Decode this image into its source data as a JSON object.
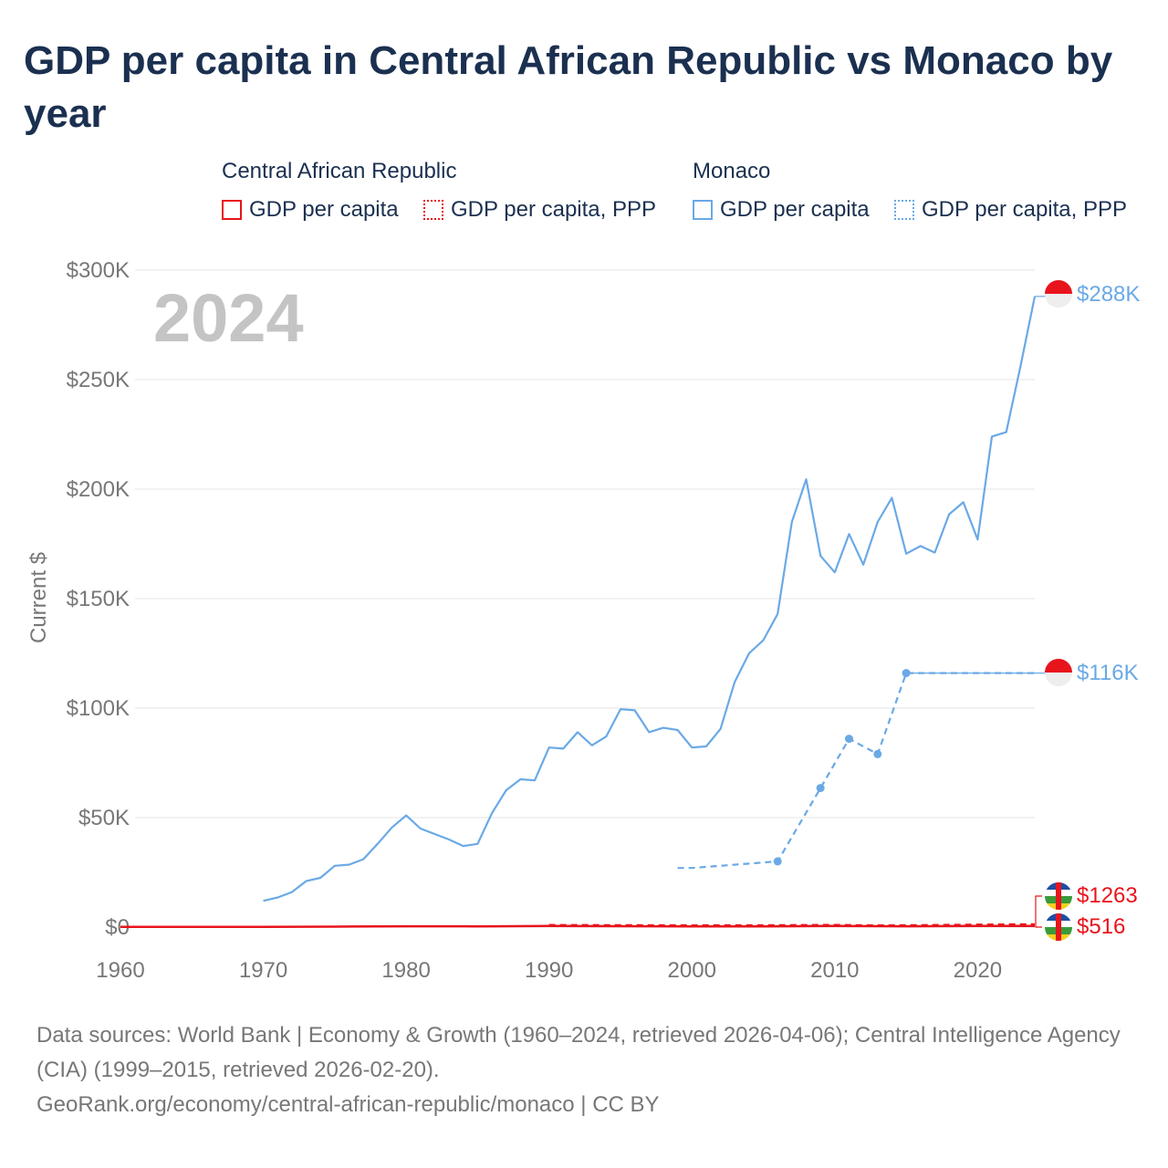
{
  "title": "GDP per capita in Central African Republic vs Monaco by year",
  "legend": {
    "groups": [
      {
        "name": "Central African Republic",
        "items": [
          "GDP per capita",
          "GDP per capita, PPP"
        ]
      },
      {
        "name": "Monaco",
        "items": [
          "GDP per capita",
          "GDP per capita, PPP"
        ]
      }
    ]
  },
  "colors": {
    "car": "#e8141c",
    "monaco": "#6aa9e6",
    "year_watermark": "#c4c4c4"
  },
  "year_watermark": "2024",
  "end_labels": {
    "monaco_gdp": "$288K",
    "monaco_ppp": "$116K",
    "car_ppp": "$1263",
    "car_gdp": "$516"
  },
  "source": {
    "line1": "Data sources: World Bank | Economy & Growth (1960–2024, retrieved 2026-04-06); Central Intelligence Agency (CIA) (1999–2015, retrieved 2026-02-20).",
    "line2": "GeoRank.org/economy/central-african-republic/monaco | CC BY"
  },
  "chart_data": {
    "type": "line",
    "title": "GDP per capita in Central African Republic vs Monaco by year",
    "xlabel": "",
    "ylabel": "Current $",
    "xlim": [
      1960,
      2024
    ],
    "ylim": [
      0,
      300000
    ],
    "x_ticks": [
      1960,
      1970,
      1980,
      1990,
      2000,
      2010,
      2020
    ],
    "y_ticks": [
      0,
      50000,
      100000,
      150000,
      200000,
      250000,
      300000
    ],
    "y_tick_labels": [
      "$0",
      "$50K",
      "$100K",
      "$150K",
      "$200K",
      "$250K",
      "$300K"
    ],
    "grid": true,
    "series": [
      {
        "name": "Monaco GDP per capita",
        "style": "solid",
        "x": [
          1970,
          1971,
          1972,
          1973,
          1974,
          1975,
          1976,
          1977,
          1978,
          1979,
          1980,
          1981,
          1982,
          1983,
          1984,
          1985,
          1986,
          1987,
          1988,
          1989,
          1990,
          1991,
          1992,
          1993,
          1994,
          1995,
          1996,
          1997,
          1998,
          1999,
          2000,
          2001,
          2002,
          2003,
          2004,
          2005,
          2006,
          2007,
          2008,
          2009,
          2010,
          2011,
          2012,
          2013,
          2014,
          2015,
          2016,
          2017,
          2018,
          2019,
          2020,
          2021,
          2022,
          2023,
          2024
        ],
        "values": [
          12000,
          13500,
          16000,
          21000,
          22500,
          28000,
          28500,
          31000,
          38000,
          45500,
          51000,
          45000,
          42500,
          40000,
          37000,
          38000,
          52000,
          62500,
          67500,
          67000,
          82000,
          81500,
          89000,
          83000,
          87000,
          99500,
          99000,
          89000,
          91000,
          90000,
          82000,
          82500,
          90500,
          112000,
          125000,
          131000,
          143000,
          185000,
          204500,
          169500,
          162000,
          179500,
          165500,
          185000,
          196000,
          170500,
          174000,
          171000,
          188500,
          194000,
          177000,
          224000,
          226000,
          256000,
          288000
        ]
      },
      {
        "name": "Monaco GDP per capita, PPP",
        "style": "dotted",
        "x": [
          1999,
          2000,
          2006,
          2009,
          2011,
          2013,
          2015,
          2024
        ],
        "values": [
          27000,
          27000,
          30000,
          63500,
          86000,
          79000,
          116000,
          116000
        ]
      },
      {
        "name": "Central African Republic GDP per capita",
        "style": "solid",
        "x": [
          1960,
          1965,
          1970,
          1975,
          1980,
          1985,
          1990,
          1995,
          2000,
          2005,
          2010,
          2015,
          2020,
          2024
        ],
        "values": [
          100,
          120,
          130,
          200,
          380,
          350,
          500,
          420,
          280,
          340,
          480,
          370,
          480,
          516
        ]
      },
      {
        "name": "Central African Republic GDP per capita, PPP",
        "style": "dotted",
        "x": [
          1990,
          1995,
          2000,
          2005,
          2010,
          2013,
          2015,
          2020,
          2024
        ],
        "values": [
          900,
          850,
          750,
          800,
          950,
          700,
          800,
          1100,
          1263
        ]
      }
    ]
  }
}
